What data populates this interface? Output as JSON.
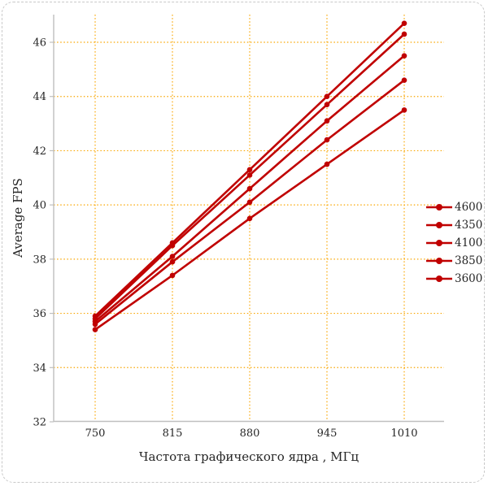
{
  "chart_data": {
    "type": "line",
    "title": "",
    "xlabel": "Частота графического ядра , МГц",
    "ylabel": "Average FPS",
    "x": [
      750,
      815,
      880,
      945,
      1010
    ],
    "series": [
      {
        "name": "4600",
        "values": [
          35.9,
          38.6,
          41.3,
          44.0,
          46.7
        ]
      },
      {
        "name": "4350",
        "values": [
          35.8,
          38.5,
          41.1,
          43.7,
          46.3
        ]
      },
      {
        "name": "4100",
        "values": [
          35.7,
          38.1,
          40.6,
          43.1,
          45.5
        ]
      },
      {
        "name": "3850",
        "values": [
          35.6,
          37.9,
          40.1,
          42.4,
          44.6
        ]
      },
      {
        "name": "3600",
        "values": [
          35.4,
          37.4,
          39.5,
          41.5,
          43.5
        ]
      }
    ],
    "ylim": [
      32,
      46
    ],
    "yticks": [
      32,
      34,
      36,
      38,
      40,
      42,
      44,
      46
    ],
    "grid": true,
    "legend_position": "right",
    "colors": {
      "line": "#C00000",
      "grid": "#F9A602",
      "axis": "#BFBFBF",
      "text": "#262626",
      "border": "#C9C9C9"
    }
  }
}
